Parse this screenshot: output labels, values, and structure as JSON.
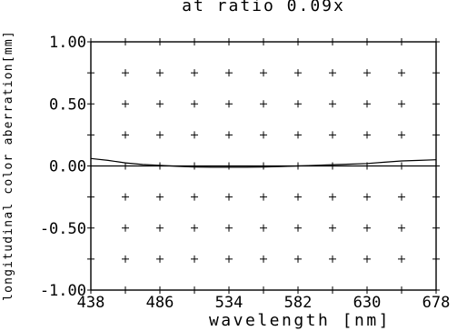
{
  "chart_data": {
    "type": "line",
    "title": "at ratio 0.09x",
    "xlabel": "wavelength [nm]",
    "ylabel": "longitudinal color aberration[mm]",
    "xlim": [
      438,
      678
    ],
    "ylim": [
      -1.0,
      1.0
    ],
    "xticks": [
      "438",
      "486",
      "534",
      "582",
      "630",
      "678"
    ],
    "yticks": [
      "1.00",
      "0.50",
      "0.00",
      "-0.50",
      "-1.00"
    ],
    "grid": "plus-markers",
    "series": [
      {
        "x": [
          438,
          450,
          462,
          474,
          486,
          498,
          510,
          522,
          534,
          546,
          558,
          570,
          582,
          594,
          606,
          618,
          630,
          642,
          654,
          666,
          678
        ],
        "values": [
          0.06,
          0.045,
          0.025,
          0.012,
          0.005,
          -0.003,
          -0.008,
          -0.01,
          -0.01,
          -0.01,
          -0.008,
          -0.005,
          0.0,
          0.005,
          0.01,
          0.015,
          0.02,
          0.03,
          0.04,
          0.045,
          0.05
        ]
      }
    ]
  }
}
